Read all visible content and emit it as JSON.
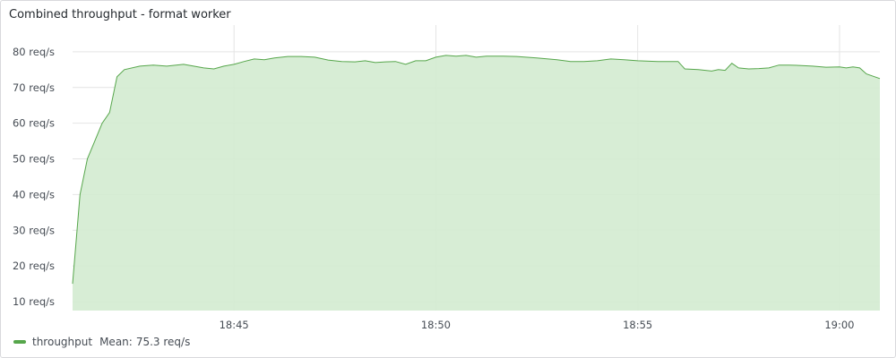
{
  "panel": {
    "title": "Combined throughput - format worker"
  },
  "legend": {
    "series_name": "throughput",
    "stat_label": "Mean:",
    "stat_value": "75.3 req/s"
  },
  "colors": {
    "line": "#56a64b",
    "fill": "#d3ebd0",
    "grid": "#e4e4e4"
  },
  "chart_data": {
    "type": "area",
    "x_unit": "minutes (clock time hh:mm)",
    "xlim": [
      "18:41:00",
      "19:01:00"
    ],
    "ylim": [
      7.5,
      87.5
    ],
    "yticks": [
      10,
      20,
      30,
      40,
      50,
      60,
      70,
      80
    ],
    "ytick_labels": [
      "10 req/s",
      "20 req/s",
      "30 req/s",
      "40 req/s",
      "50 req/s",
      "60 req/s",
      "70 req/s",
      "80 req/s"
    ],
    "xticks": [
      "18:45",
      "18:50",
      "18:55",
      "19:00"
    ],
    "grid": true,
    "legend_position": "bottom-left",
    "series": [
      {
        "name": "throughput",
        "points": [
          [
            "18:41:00",
            15
          ],
          [
            "18:41:11",
            40
          ],
          [
            "18:41:22",
            50
          ],
          [
            "18:41:33",
            55
          ],
          [
            "18:41:44",
            60
          ],
          [
            "18:41:55",
            63
          ],
          [
            "18:42:06",
            73
          ],
          [
            "18:42:17",
            75
          ],
          [
            "18:42:40",
            76
          ],
          [
            "18:43:00",
            76.3
          ],
          [
            "18:43:20",
            76
          ],
          [
            "18:43:45",
            76.5
          ],
          [
            "18:44:00",
            76
          ],
          [
            "18:44:15",
            75.5
          ],
          [
            "18:44:30",
            75.2
          ],
          [
            "18:44:45",
            76
          ],
          [
            "18:45:00",
            76.5
          ],
          [
            "18:45:15",
            77.3
          ],
          [
            "18:45:30",
            78
          ],
          [
            "18:45:45",
            77.8
          ],
          [
            "18:46:00",
            78.3
          ],
          [
            "18:46:20",
            78.7
          ],
          [
            "18:46:40",
            78.7
          ],
          [
            "18:47:00",
            78.5
          ],
          [
            "18:47:20",
            77.7
          ],
          [
            "18:47:40",
            77.3
          ],
          [
            "18:48:00",
            77.2
          ],
          [
            "18:48:15",
            77.5
          ],
          [
            "18:48:30",
            77
          ],
          [
            "18:48:45",
            77.2
          ],
          [
            "18:49:00",
            77.3
          ],
          [
            "18:49:15",
            76.5
          ],
          [
            "18:49:30",
            77.5
          ],
          [
            "18:49:45",
            77.5
          ],
          [
            "18:50:00",
            78.5
          ],
          [
            "18:50:15",
            79
          ],
          [
            "18:50:30",
            78.8
          ],
          [
            "18:50:45",
            79
          ],
          [
            "18:51:00",
            78.5
          ],
          [
            "18:51:15",
            78.8
          ],
          [
            "18:51:40",
            78.8
          ],
          [
            "18:52:00",
            78.7
          ],
          [
            "18:52:30",
            78.3
          ],
          [
            "18:53:00",
            77.8
          ],
          [
            "18:53:20",
            77.3
          ],
          [
            "18:53:40",
            77.3
          ],
          [
            "18:54:00",
            77.5
          ],
          [
            "18:54:20",
            78
          ],
          [
            "18:54:40",
            77.8
          ],
          [
            "18:55:00",
            77.5
          ],
          [
            "18:55:30",
            77.3
          ],
          [
            "18:56:00",
            77.3
          ],
          [
            "18:56:10",
            75.2
          ],
          [
            "18:56:30",
            75
          ],
          [
            "18:56:50",
            74.6
          ],
          [
            "18:57:00",
            75
          ],
          [
            "18:57:10",
            74.8
          ],
          [
            "18:57:20",
            76.8
          ],
          [
            "18:57:30",
            75.5
          ],
          [
            "18:57:45",
            75.2
          ],
          [
            "18:58:00",
            75.3
          ],
          [
            "18:58:15",
            75.5
          ],
          [
            "18:58:30",
            76.3
          ],
          [
            "18:58:45",
            76.3
          ],
          [
            "18:59:00",
            76.2
          ],
          [
            "18:59:20",
            76
          ],
          [
            "18:59:40",
            75.7
          ],
          [
            "19:00:00",
            75.8
          ],
          [
            "19:00:10",
            75.5
          ],
          [
            "19:00:20",
            75.8
          ],
          [
            "19:00:30",
            75.5
          ],
          [
            "19:00:40",
            73.8
          ],
          [
            "19:01:00",
            72.5
          ]
        ]
      }
    ]
  }
}
